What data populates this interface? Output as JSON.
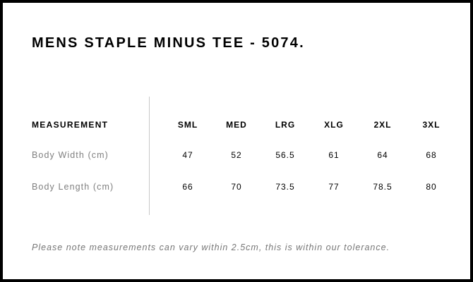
{
  "title": "MENS STAPLE MINUS TEE - 5074.",
  "table": {
    "header_label": "MEASUREMENT",
    "sizes": [
      "SML",
      "MED",
      "LRG",
      "XLG",
      "2XL",
      "3XL"
    ],
    "rows": [
      {
        "label": "Body Width (cm)",
        "values": [
          "47",
          "52",
          "56.5",
          "61",
          "64",
          "68"
        ]
      },
      {
        "label": "Body Length (cm)",
        "values": [
          "66",
          "70",
          "73.5",
          "77",
          "78.5",
          "80"
        ]
      }
    ]
  },
  "note": "Please note measurements can vary within 2.5cm, this is within our tolerance."
}
